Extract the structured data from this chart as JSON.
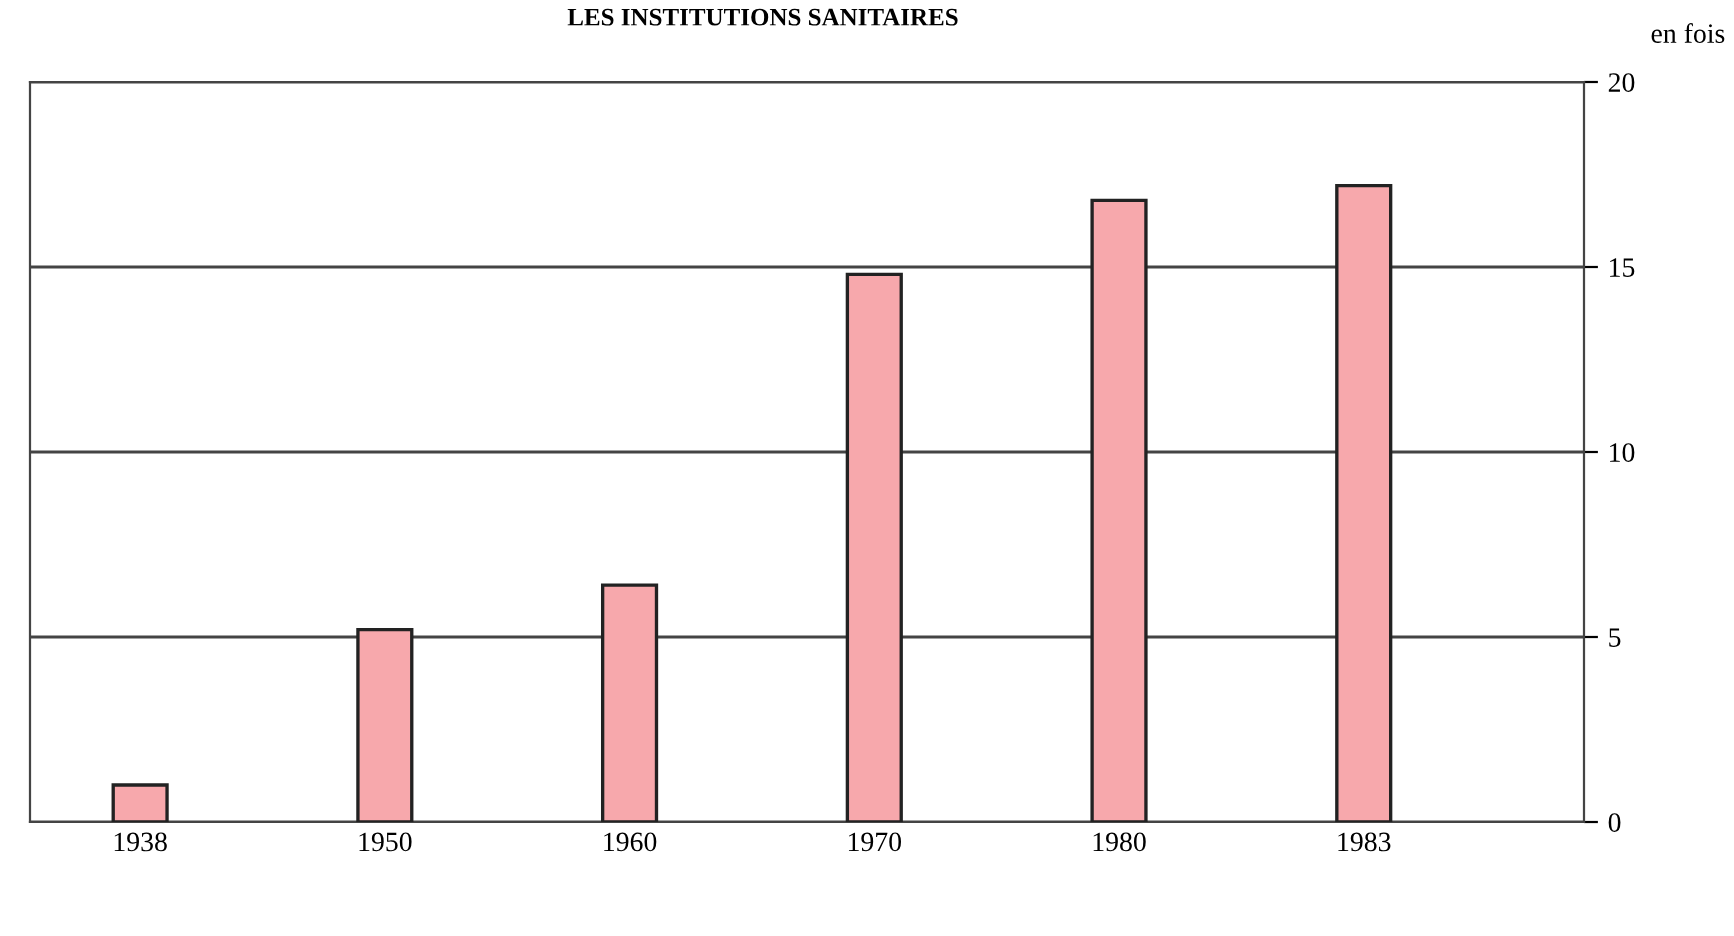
{
  "chart_data": {
    "type": "bar",
    "title": "LES INSTITUTIONS SANITAIRES",
    "ylabel": "en fois",
    "categories": [
      "1938",
      "1950",
      "1960",
      "1970",
      "1980",
      "1983"
    ],
    "values": [
      1.0,
      5.2,
      6.4,
      14.8,
      16.8,
      17.2
    ],
    "color": "#f7a8ac",
    "ylim": [
      0,
      20
    ],
    "yticks": [
      0,
      5,
      10,
      15,
      20
    ],
    "grid": "y"
  }
}
